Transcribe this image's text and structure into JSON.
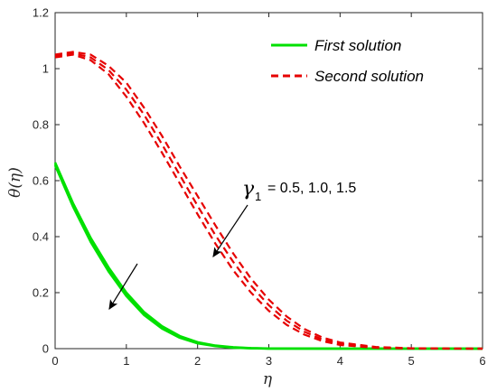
{
  "chart_data": {
    "type": "line",
    "xlabel": "η",
    "ylabel": "θ(η)",
    "xlim": [
      0,
      6
    ],
    "ylim": [
      0,
      1.2
    ],
    "xticks": [
      "0",
      "1",
      "2",
      "3",
      "4",
      "5",
      "6"
    ],
    "yticks": [
      "0",
      "0.2",
      "0.4",
      "0.6",
      "0.8",
      "1",
      "1.2"
    ],
    "grid": false,
    "legend_position": "top-right",
    "legend": [
      {
        "label": "First solution",
        "style": "solid",
        "color": "#00e000"
      },
      {
        "label": "Second solution",
        "style": "dashed",
        "color": "#e60000"
      }
    ],
    "annotation": {
      "symbol": "γ",
      "subscript": "1",
      "text": "= 0.5, 1.0, 1.5"
    },
    "series": [
      {
        "group": "First solution",
        "x": [
          0,
          0.25,
          0.5,
          0.75,
          1.0,
          1.25,
          1.5,
          1.75,
          2.0,
          2.25,
          2.5,
          2.75,
          3.0,
          4.0,
          5.0,
          6.0
        ],
        "y": [
          0.665,
          0.52,
          0.395,
          0.29,
          0.2,
          0.13,
          0.08,
          0.045,
          0.023,
          0.011,
          0.005,
          0.002,
          0.0005,
          0,
          0,
          0
        ]
      },
      {
        "group": "First solution",
        "x": [
          0,
          0.25,
          0.5,
          0.75,
          1.0,
          1.25,
          1.5,
          1.75,
          2.0,
          2.25,
          2.5,
          2.75,
          3.0,
          4.0,
          5.0,
          6.0
        ],
        "y": [
          0.66,
          0.514,
          0.388,
          0.283,
          0.194,
          0.125,
          0.076,
          0.042,
          0.021,
          0.01,
          0.004,
          0.0015,
          0.0004,
          0,
          0,
          0
        ]
      },
      {
        "group": "First solution",
        "x": [
          0,
          0.25,
          0.5,
          0.75,
          1.0,
          1.25,
          1.5,
          1.75,
          2.0,
          2.25,
          2.5,
          2.75,
          3.0,
          4.0,
          5.0,
          6.0
        ],
        "y": [
          0.655,
          0.508,
          0.381,
          0.276,
          0.188,
          0.12,
          0.072,
          0.039,
          0.019,
          0.009,
          0.0035,
          0.0012,
          0.0003,
          0,
          0,
          0
        ]
      },
      {
        "group": "Second solution",
        "x": [
          0,
          0.25,
          0.5,
          0.75,
          1.0,
          1.25,
          1.5,
          1.75,
          2.0,
          2.25,
          2.5,
          2.75,
          3.0,
          3.25,
          3.5,
          3.75,
          4.0,
          4.5,
          5.0,
          5.5,
          6.0
        ],
        "y": [
          1.05,
          1.06,
          1.05,
          1.01,
          0.95,
          0.86,
          0.76,
          0.65,
          0.545,
          0.44,
          0.34,
          0.25,
          0.175,
          0.115,
          0.07,
          0.04,
          0.022,
          0.006,
          0.0015,
          0.0003,
          0
        ]
      },
      {
        "group": "Second solution",
        "x": [
          0,
          0.25,
          0.5,
          0.75,
          1.0,
          1.25,
          1.5,
          1.75,
          2.0,
          2.25,
          2.5,
          2.75,
          3.0,
          3.25,
          3.5,
          3.75,
          4.0,
          4.5,
          5.0,
          5.5,
          6.0
        ],
        "y": [
          1.045,
          1.055,
          1.04,
          0.995,
          0.925,
          0.835,
          0.73,
          0.62,
          0.51,
          0.405,
          0.31,
          0.225,
          0.155,
          0.1,
          0.06,
          0.033,
          0.017,
          0.004,
          0.001,
          0.0002,
          0
        ]
      },
      {
        "group": "Second solution",
        "x": [
          0,
          0.25,
          0.5,
          0.75,
          1.0,
          1.25,
          1.5,
          1.75,
          2.0,
          2.25,
          2.5,
          2.75,
          3.0,
          3.25,
          3.5,
          3.75,
          4.0,
          4.5,
          5.0,
          5.5,
          6.0
        ],
        "y": [
          1.04,
          1.05,
          1.03,
          0.98,
          0.9,
          0.805,
          0.7,
          0.59,
          0.48,
          0.375,
          0.28,
          0.2,
          0.135,
          0.085,
          0.05,
          0.027,
          0.013,
          0.003,
          0.0007,
          0.0001,
          0
        ]
      }
    ]
  }
}
